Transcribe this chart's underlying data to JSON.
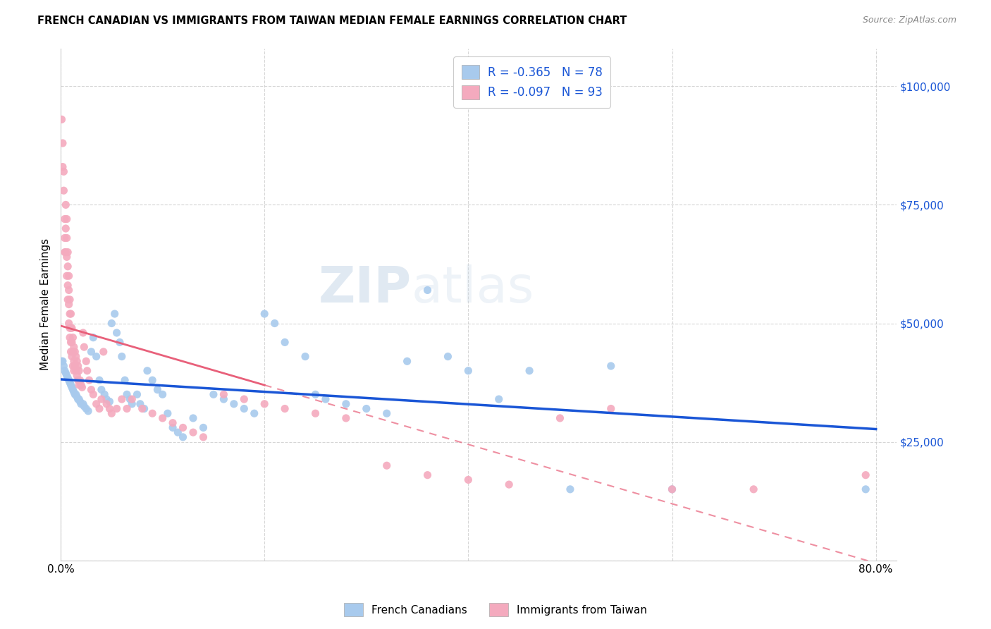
{
  "title": "FRENCH CANADIAN VS IMMIGRANTS FROM TAIWAN MEDIAN FEMALE EARNINGS CORRELATION CHART",
  "source": "Source: ZipAtlas.com",
  "ylabel": "Median Female Earnings",
  "y_ticks": [
    0,
    25000,
    50000,
    75000,
    100000
  ],
  "y_tick_labels": [
    "",
    "$25,000",
    "$50,000",
    "$75,000",
    "$100,000"
  ],
  "xlim": [
    0.0,
    0.82
  ],
  "ylim": [
    0,
    108000
  ],
  "watermark": "ZIPatlas",
  "legend_blue_r": "-0.365",
  "legend_blue_n": "78",
  "legend_pink_r": "-0.097",
  "legend_pink_n": "93",
  "blue_color": "#A8CAED",
  "pink_color": "#F4AABE",
  "blue_line_color": "#1A56D6",
  "pink_line_color": "#E8607A",
  "pink_dash_color": "#F4AABE",
  "french_canadians_label": "French Canadians",
  "immigrants_taiwan_label": "Immigrants from Taiwan",
  "blue_scatter_x": [
    0.001,
    0.002,
    0.003,
    0.004,
    0.005,
    0.006,
    0.007,
    0.008,
    0.009,
    0.01,
    0.011,
    0.012,
    0.013,
    0.014,
    0.015,
    0.016,
    0.017,
    0.018,
    0.019,
    0.02,
    0.022,
    0.023,
    0.025,
    0.027,
    0.03,
    0.032,
    0.035,
    0.038,
    0.04,
    0.043,
    0.045,
    0.048,
    0.05,
    0.053,
    0.055,
    0.058,
    0.06,
    0.063,
    0.065,
    0.068,
    0.07,
    0.075,
    0.078,
    0.082,
    0.085,
    0.09,
    0.095,
    0.1,
    0.105,
    0.11,
    0.115,
    0.12,
    0.13,
    0.14,
    0.15,
    0.16,
    0.17,
    0.18,
    0.19,
    0.2,
    0.21,
    0.22,
    0.24,
    0.25,
    0.26,
    0.28,
    0.3,
    0.32,
    0.34,
    0.36,
    0.38,
    0.4,
    0.43,
    0.46,
    0.5,
    0.54,
    0.6,
    0.79
  ],
  "blue_scatter_y": [
    42000,
    42000,
    41000,
    40000,
    39500,
    39000,
    38500,
    38000,
    37500,
    37000,
    36500,
    36000,
    35500,
    35000,
    35000,
    34500,
    34000,
    34000,
    33500,
    33000,
    33000,
    32500,
    32000,
    31500,
    44000,
    47000,
    43000,
    38000,
    36000,
    35000,
    34000,
    33500,
    50000,
    52000,
    48000,
    46000,
    43000,
    38000,
    35000,
    34000,
    33000,
    35000,
    33000,
    32000,
    40000,
    38000,
    36000,
    35000,
    31000,
    28000,
    27000,
    26000,
    30000,
    28000,
    35000,
    34000,
    33000,
    32000,
    31000,
    52000,
    50000,
    46000,
    43000,
    35000,
    34000,
    33000,
    32000,
    31000,
    42000,
    57000,
    43000,
    40000,
    34000,
    40000,
    15000,
    41000,
    15000,
    15000
  ],
  "pink_scatter_x": [
    0.001,
    0.002,
    0.002,
    0.003,
    0.003,
    0.004,
    0.004,
    0.004,
    0.005,
    0.005,
    0.005,
    0.006,
    0.006,
    0.006,
    0.006,
    0.007,
    0.007,
    0.007,
    0.007,
    0.008,
    0.008,
    0.008,
    0.008,
    0.009,
    0.009,
    0.009,
    0.009,
    0.01,
    0.01,
    0.01,
    0.01,
    0.011,
    0.011,
    0.011,
    0.012,
    0.012,
    0.012,
    0.013,
    0.013,
    0.013,
    0.014,
    0.014,
    0.015,
    0.015,
    0.016,
    0.016,
    0.017,
    0.017,
    0.018,
    0.018,
    0.019,
    0.02,
    0.021,
    0.022,
    0.023,
    0.025,
    0.026,
    0.028,
    0.03,
    0.032,
    0.035,
    0.038,
    0.04,
    0.042,
    0.045,
    0.048,
    0.05,
    0.055,
    0.06,
    0.065,
    0.07,
    0.08,
    0.09,
    0.1,
    0.11,
    0.12,
    0.13,
    0.14,
    0.16,
    0.18,
    0.2,
    0.22,
    0.25,
    0.28,
    0.32,
    0.36,
    0.4,
    0.44,
    0.49,
    0.54,
    0.6,
    0.68,
    0.79
  ],
  "pink_scatter_y": [
    93000,
    88000,
    83000,
    82000,
    78000,
    72000,
    68000,
    65000,
    75000,
    70000,
    65000,
    72000,
    68000,
    64000,
    60000,
    65000,
    62000,
    58000,
    55000,
    60000,
    57000,
    54000,
    50000,
    55000,
    52000,
    49000,
    47000,
    52000,
    49000,
    46000,
    44000,
    49000,
    46000,
    43000,
    47000,
    44000,
    41000,
    45000,
    42000,
    40000,
    44000,
    41000,
    43000,
    40000,
    42000,
    39000,
    41000,
    38000,
    40000,
    37000,
    38000,
    37000,
    36500,
    48000,
    45000,
    42000,
    40000,
    38000,
    36000,
    35000,
    33000,
    32000,
    34000,
    44000,
    33000,
    32000,
    31000,
    32000,
    34000,
    32000,
    34000,
    32000,
    31000,
    30000,
    29000,
    28000,
    27000,
    26000,
    35000,
    34000,
    33000,
    32000,
    31000,
    30000,
    20000,
    18000,
    17000,
    16000,
    30000,
    32000,
    15000,
    15000,
    18000
  ]
}
